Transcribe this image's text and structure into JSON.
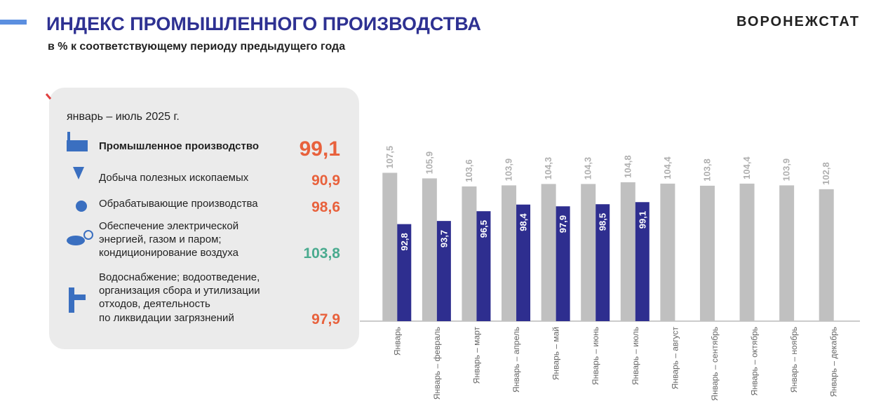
{
  "header": {
    "title": "ИНДЕКС ПРОМЫШЛЕННОГО ПРОИЗВОДСТВА",
    "subtitle": "в % к соответствующему периоду предыдущего  года",
    "brand": "ВОРОНЕЖСТАТ"
  },
  "panel": {
    "period": "январь – июль 2025 г.",
    "items": [
      {
        "lines": [
          "Промышленное производство"
        ],
        "value": "99,1"
      },
      {
        "lines": [
          "Добыча полезных ископаемых"
        ],
        "value": "90,9"
      },
      {
        "lines": [
          "Обрабатывающие производства"
        ],
        "value": "98,6"
      },
      {
        "lines": [
          "Обеспечение электрической",
          "энергией, газом и паром;",
          "кондиционирование воздуха"
        ],
        "value": "103,8"
      },
      {
        "lines": [
          "Водоснабжение; водоотведение,",
          "организация сбора и утилизации",
          "отходов, деятельность",
          "по ликвидации загрязнений"
        ],
        "value": "97,9"
      }
    ]
  },
  "chart_data": {
    "type": "bar",
    "categories": [
      "Январь",
      "Январь – февраль",
      "Январь – март",
      "Январь – апрель",
      "Январь – май",
      "Январь – июнь",
      "Январь – июль",
      "Январь – август",
      "Январь – сентябрь",
      "Январь – октябрь",
      "Январь – ноябрь",
      "Январь – декабрь"
    ],
    "series": [
      {
        "color": "#c0c0c0",
        "values": [
          107.5,
          105.9,
          103.6,
          103.9,
          104.3,
          104.3,
          104.8,
          104.4,
          103.8,
          104.4,
          103.9,
          102.8
        ],
        "value_labels": [
          "107,5",
          "105,9",
          "103,6",
          "103,9",
          "104,3",
          "104,3",
          "104,8",
          "104,4",
          "103,8",
          "104,4",
          "103,9",
          "102,8"
        ]
      },
      {
        "color": "#2e2e8f",
        "values": [
          92.8,
          93.7,
          96.5,
          98.4,
          97.9,
          98.5,
          99.1,
          null,
          null,
          null,
          null,
          null
        ],
        "value_labels": [
          "92,8",
          "93,7",
          "96,5",
          "98,4",
          "97,9",
          "98,5",
          "99,1",
          null,
          null,
          null,
          null,
          null
        ]
      }
    ],
    "ylim": [
      65,
      110
    ]
  }
}
